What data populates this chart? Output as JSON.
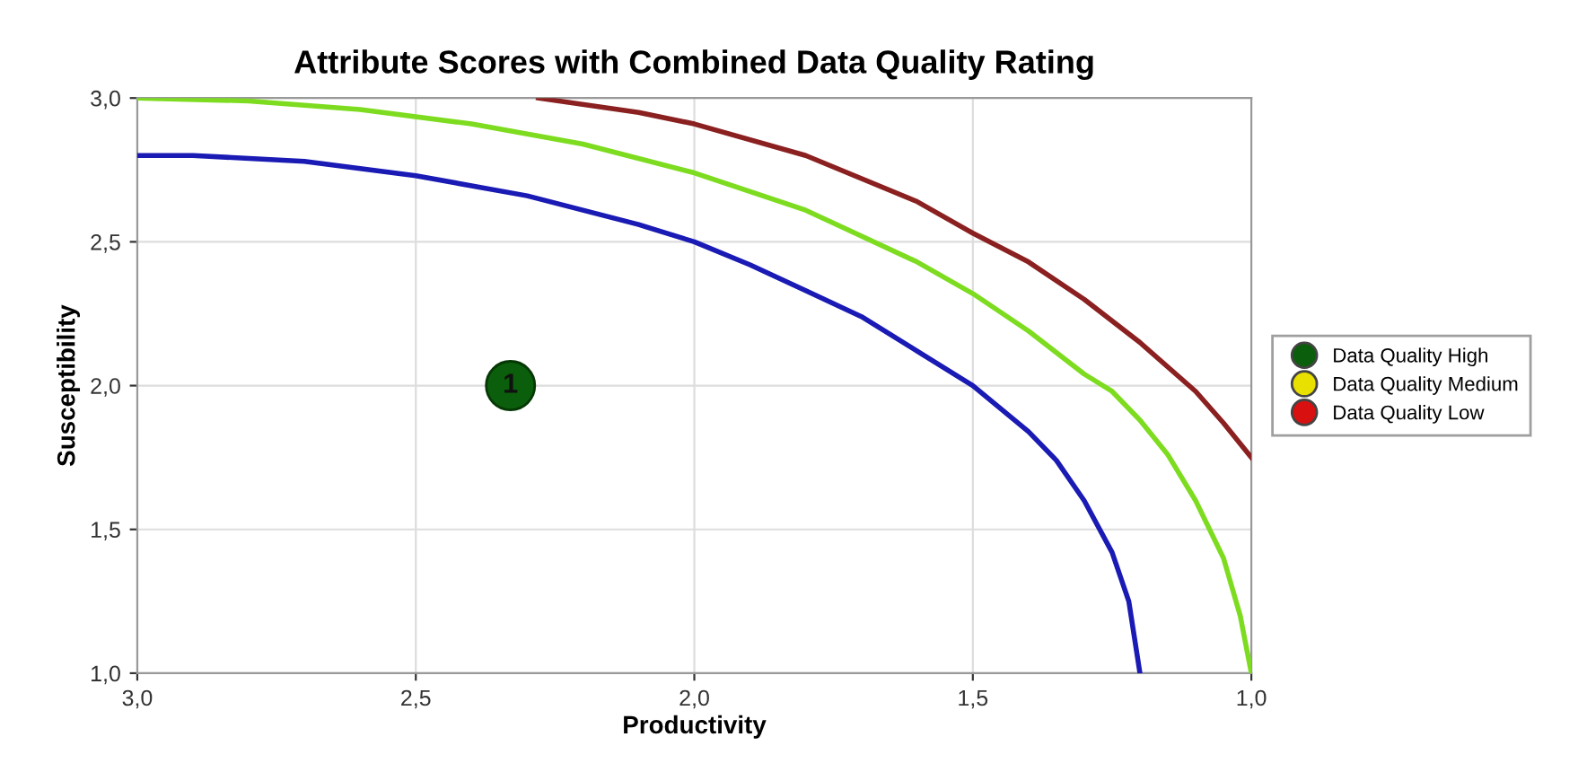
{
  "chart_data": {
    "type": "scatter",
    "title": "Attribute Scores with Combined Data Quality Rating",
    "xlabel": "Productivity",
    "ylabel": "Susceptibility",
    "xlim": [
      3.0,
      1.0
    ],
    "ylim": [
      1.0,
      3.0
    ],
    "xticks": [
      {
        "value": 3.0,
        "label": "3,0"
      },
      {
        "value": 2.5,
        "label": "2,5"
      },
      {
        "value": 2.0,
        "label": "2,0"
      },
      {
        "value": 1.5,
        "label": "1,5"
      },
      {
        "value": 1.0,
        "label": "1,0"
      }
    ],
    "yticks": [
      {
        "value": 1.0,
        "label": "1,0"
      },
      {
        "value": 1.5,
        "label": "1,5"
      },
      {
        "value": 2.0,
        "label": "2,0"
      },
      {
        "value": 2.5,
        "label": "2,5"
      },
      {
        "value": 3.0,
        "label": "3,0"
      }
    ],
    "grid": true,
    "legend": "right",
    "annotations": [
      {
        "text": "1",
        "x": 2.33,
        "y": 2.0
      }
    ],
    "series": [
      {
        "name": "Data Quality High",
        "marker": "circle",
        "color": "#0b5e0b",
        "x": [
          2.33
        ],
        "values": [
          2.0
        ]
      },
      {
        "name": "Data Quality Medium",
        "marker": "circle",
        "color": "#e8e000"
      },
      {
        "name": "Data Quality Low",
        "marker": "circle",
        "color": "#d81010"
      },
      {
        "type": "line",
        "color": "#1a1ab4",
        "x": [
          3.0,
          2.9,
          2.7,
          2.5,
          2.3,
          2.1,
          2.0,
          1.9,
          1.8,
          1.7,
          1.6,
          1.5,
          1.4,
          1.35,
          1.3,
          1.25,
          1.22,
          1.2
        ],
        "values": [
          2.8,
          2.8,
          2.78,
          2.73,
          2.66,
          2.56,
          2.5,
          2.42,
          2.33,
          2.24,
          2.12,
          2.0,
          1.84,
          1.74,
          1.6,
          1.42,
          1.25,
          1.0
        ]
      },
      {
        "type": "line",
        "color": "#7ddc1f",
        "x": [
          3.0,
          2.8,
          2.6,
          2.4,
          2.2,
          2.0,
          1.8,
          1.6,
          1.5,
          1.4,
          1.3,
          1.25,
          1.2,
          1.15,
          1.1,
          1.05,
          1.02,
          1.0
        ],
        "values": [
          3.0,
          2.99,
          2.96,
          2.91,
          2.84,
          2.74,
          2.61,
          2.43,
          2.32,
          2.19,
          2.04,
          1.98,
          1.88,
          1.76,
          1.6,
          1.4,
          1.2,
          1.0
        ]
      },
      {
        "type": "line",
        "color": "#8b2020",
        "x": [
          2.28,
          2.1,
          2.0,
          1.8,
          1.6,
          1.5,
          1.4,
          1.3,
          1.2,
          1.1,
          1.05,
          1.0
        ],
        "values": [
          3.0,
          2.95,
          2.91,
          2.8,
          2.64,
          2.53,
          2.43,
          2.3,
          2.15,
          1.98,
          1.87,
          1.75
        ]
      }
    ]
  }
}
